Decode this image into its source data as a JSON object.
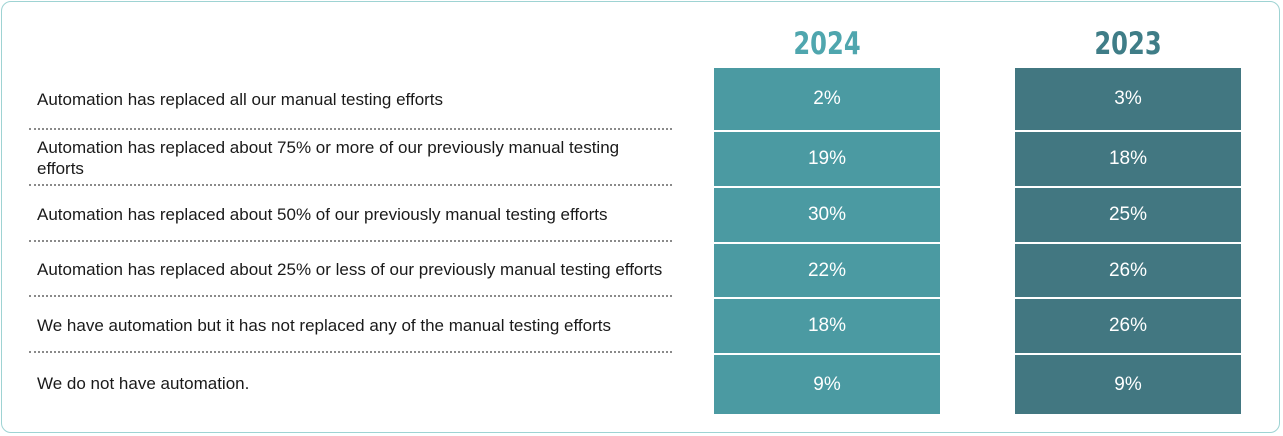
{
  "chart_data": {
    "type": "table",
    "rows": [
      "Automation has replaced all our manual testing efforts",
      "Automation has replaced about 75% or more of our previously manual testing efforts",
      "Automation has replaced about 50% of our previously manual testing efforts",
      "Automation has replaced about 25% or less of our previously manual testing efforts",
      "We have automation but it has not replaced any of the manual testing efforts",
      "We do not have automation."
    ],
    "series": [
      {
        "name": "2024",
        "color": "#4b9aa2",
        "header_color": "#4fa6ae",
        "values": [
          "2%",
          "19%",
          "30%",
          "22%",
          "18%",
          "9%"
        ]
      },
      {
        "name": "2023",
        "color": "#427781",
        "header_color": "#3f7d87",
        "values": [
          "3%",
          "18%",
          "25%",
          "26%",
          "26%",
          "9%"
        ]
      }
    ]
  }
}
